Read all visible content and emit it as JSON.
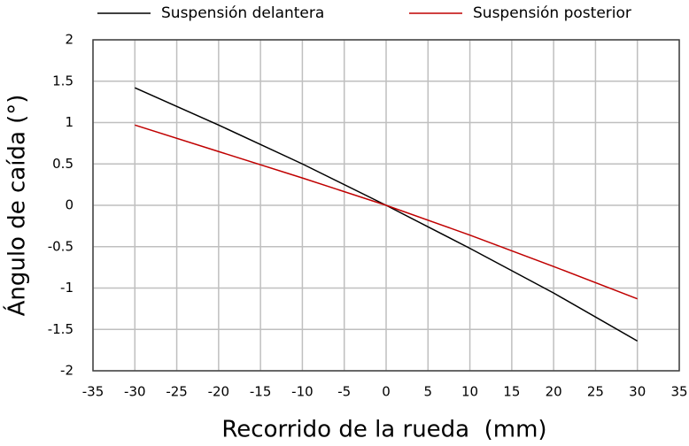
{
  "chart_data": {
    "type": "line",
    "x_label": "Recorrido de la rueda  (mm)",
    "y_label": "Ángulo de caída (°)",
    "x": [
      -30,
      -20,
      -10,
      0,
      10,
      20,
      30
    ],
    "series": [
      {
        "name": "Suspensión delantera",
        "color": "#000000",
        "values": [
          1.42,
          0.97,
          0.5,
          0,
          -0.52,
          -1.06,
          -1.64
        ]
      },
      {
        "name": "Suspensión posterior",
        "color": "#c00000",
        "values": [
          0.97,
          0.65,
          0.33,
          0,
          -0.36,
          -0.74,
          -1.13
        ]
      }
    ],
    "xlim": [
      -35,
      35
    ],
    "xticks": [
      -35,
      -30,
      -25,
      -20,
      -15,
      -10,
      -5,
      0,
      5,
      10,
      15,
      20,
      25,
      30,
      35
    ],
    "ylim": [
      -2,
      2
    ],
    "yticks": [
      -2,
      -1.5,
      -1,
      -0.5,
      0,
      0.5,
      1,
      1.5,
      2
    ],
    "grid": true
  }
}
